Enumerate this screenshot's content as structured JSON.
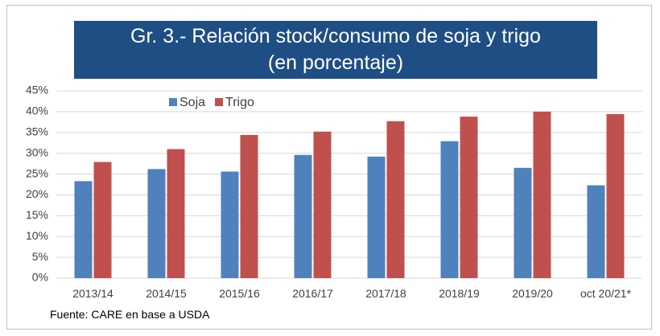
{
  "chart_data": {
    "type": "bar",
    "title": "Gr. 3.- Relación stock/consumo de soja y trigo",
    "subtitle": "(en porcentaje)",
    "categories": [
      "2013/14",
      "2014/15",
      "2015/16",
      "2016/17",
      "2017/18",
      "2018/19",
      "2019/20",
      "oct 20/21*"
    ],
    "series": [
      {
        "name": "Soja",
        "color": "#4f81bd",
        "values": [
          23.3,
          26.2,
          25.6,
          29.6,
          29.2,
          32.9,
          26.5,
          22.3
        ]
      },
      {
        "name": "Trigo",
        "color": "#c0504d",
        "values": [
          27.9,
          31.0,
          34.4,
          35.2,
          37.7,
          38.8,
          40.0,
          39.4
        ]
      }
    ],
    "ylim": [
      0,
      45
    ],
    "yticks": [
      {
        "value": 0,
        "label": "0%"
      },
      {
        "value": 5,
        "label": "5%"
      },
      {
        "value": 10,
        "label": "10%"
      },
      {
        "value": 15,
        "label": "15%"
      },
      {
        "value": 20,
        "label": "20%"
      },
      {
        "value": 25,
        "label": "25%"
      },
      {
        "value": 30,
        "label": "30%"
      },
      {
        "value": 35,
        "label": "35%"
      },
      {
        "value": 40,
        "label": "40%"
      },
      {
        "value": 45,
        "label": "45%"
      }
    ],
    "grid": true,
    "legend": "top-left",
    "note": "Fuente: CARE en base a USDA"
  }
}
